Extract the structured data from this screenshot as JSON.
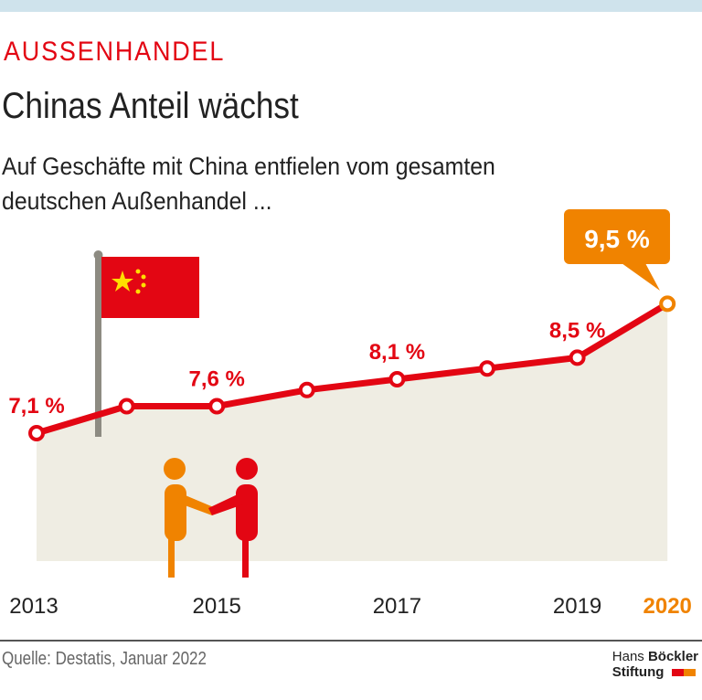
{
  "header": {
    "kicker": "AUSSENHANDEL",
    "title": "Chinas Anteil wächst",
    "subtitle": "Auf Geschäfte mit China entfielen vom gesamten deutschen Außenhandel ..."
  },
  "chart_data": {
    "type": "area",
    "x": [
      2013,
      2014,
      2015,
      2016,
      2017,
      2018,
      2019,
      2020
    ],
    "values": [
      7.1,
      7.6,
      7.6,
      7.9,
      8.1,
      8.3,
      8.5,
      9.5
    ],
    "data_labels": {
      "2013": "7,1 %",
      "2015": "7,6 %",
      "2017": "8,1 %",
      "2019": "8,5 %",
      "2020": "9,5 %"
    },
    "tick_labels": [
      "2013",
      "2015",
      "2017",
      "2019",
      "2020"
    ],
    "unit": "%",
    "grid": false,
    "colors": {
      "line": "#e30613",
      "highlight": "#f08300",
      "area": "#efede3"
    }
  },
  "footer": {
    "source": "Quelle: Destatis, Januar 2022",
    "logo_line1a": "Hans",
    "logo_line1b": "Böckler",
    "logo_line2": "Stiftung"
  }
}
